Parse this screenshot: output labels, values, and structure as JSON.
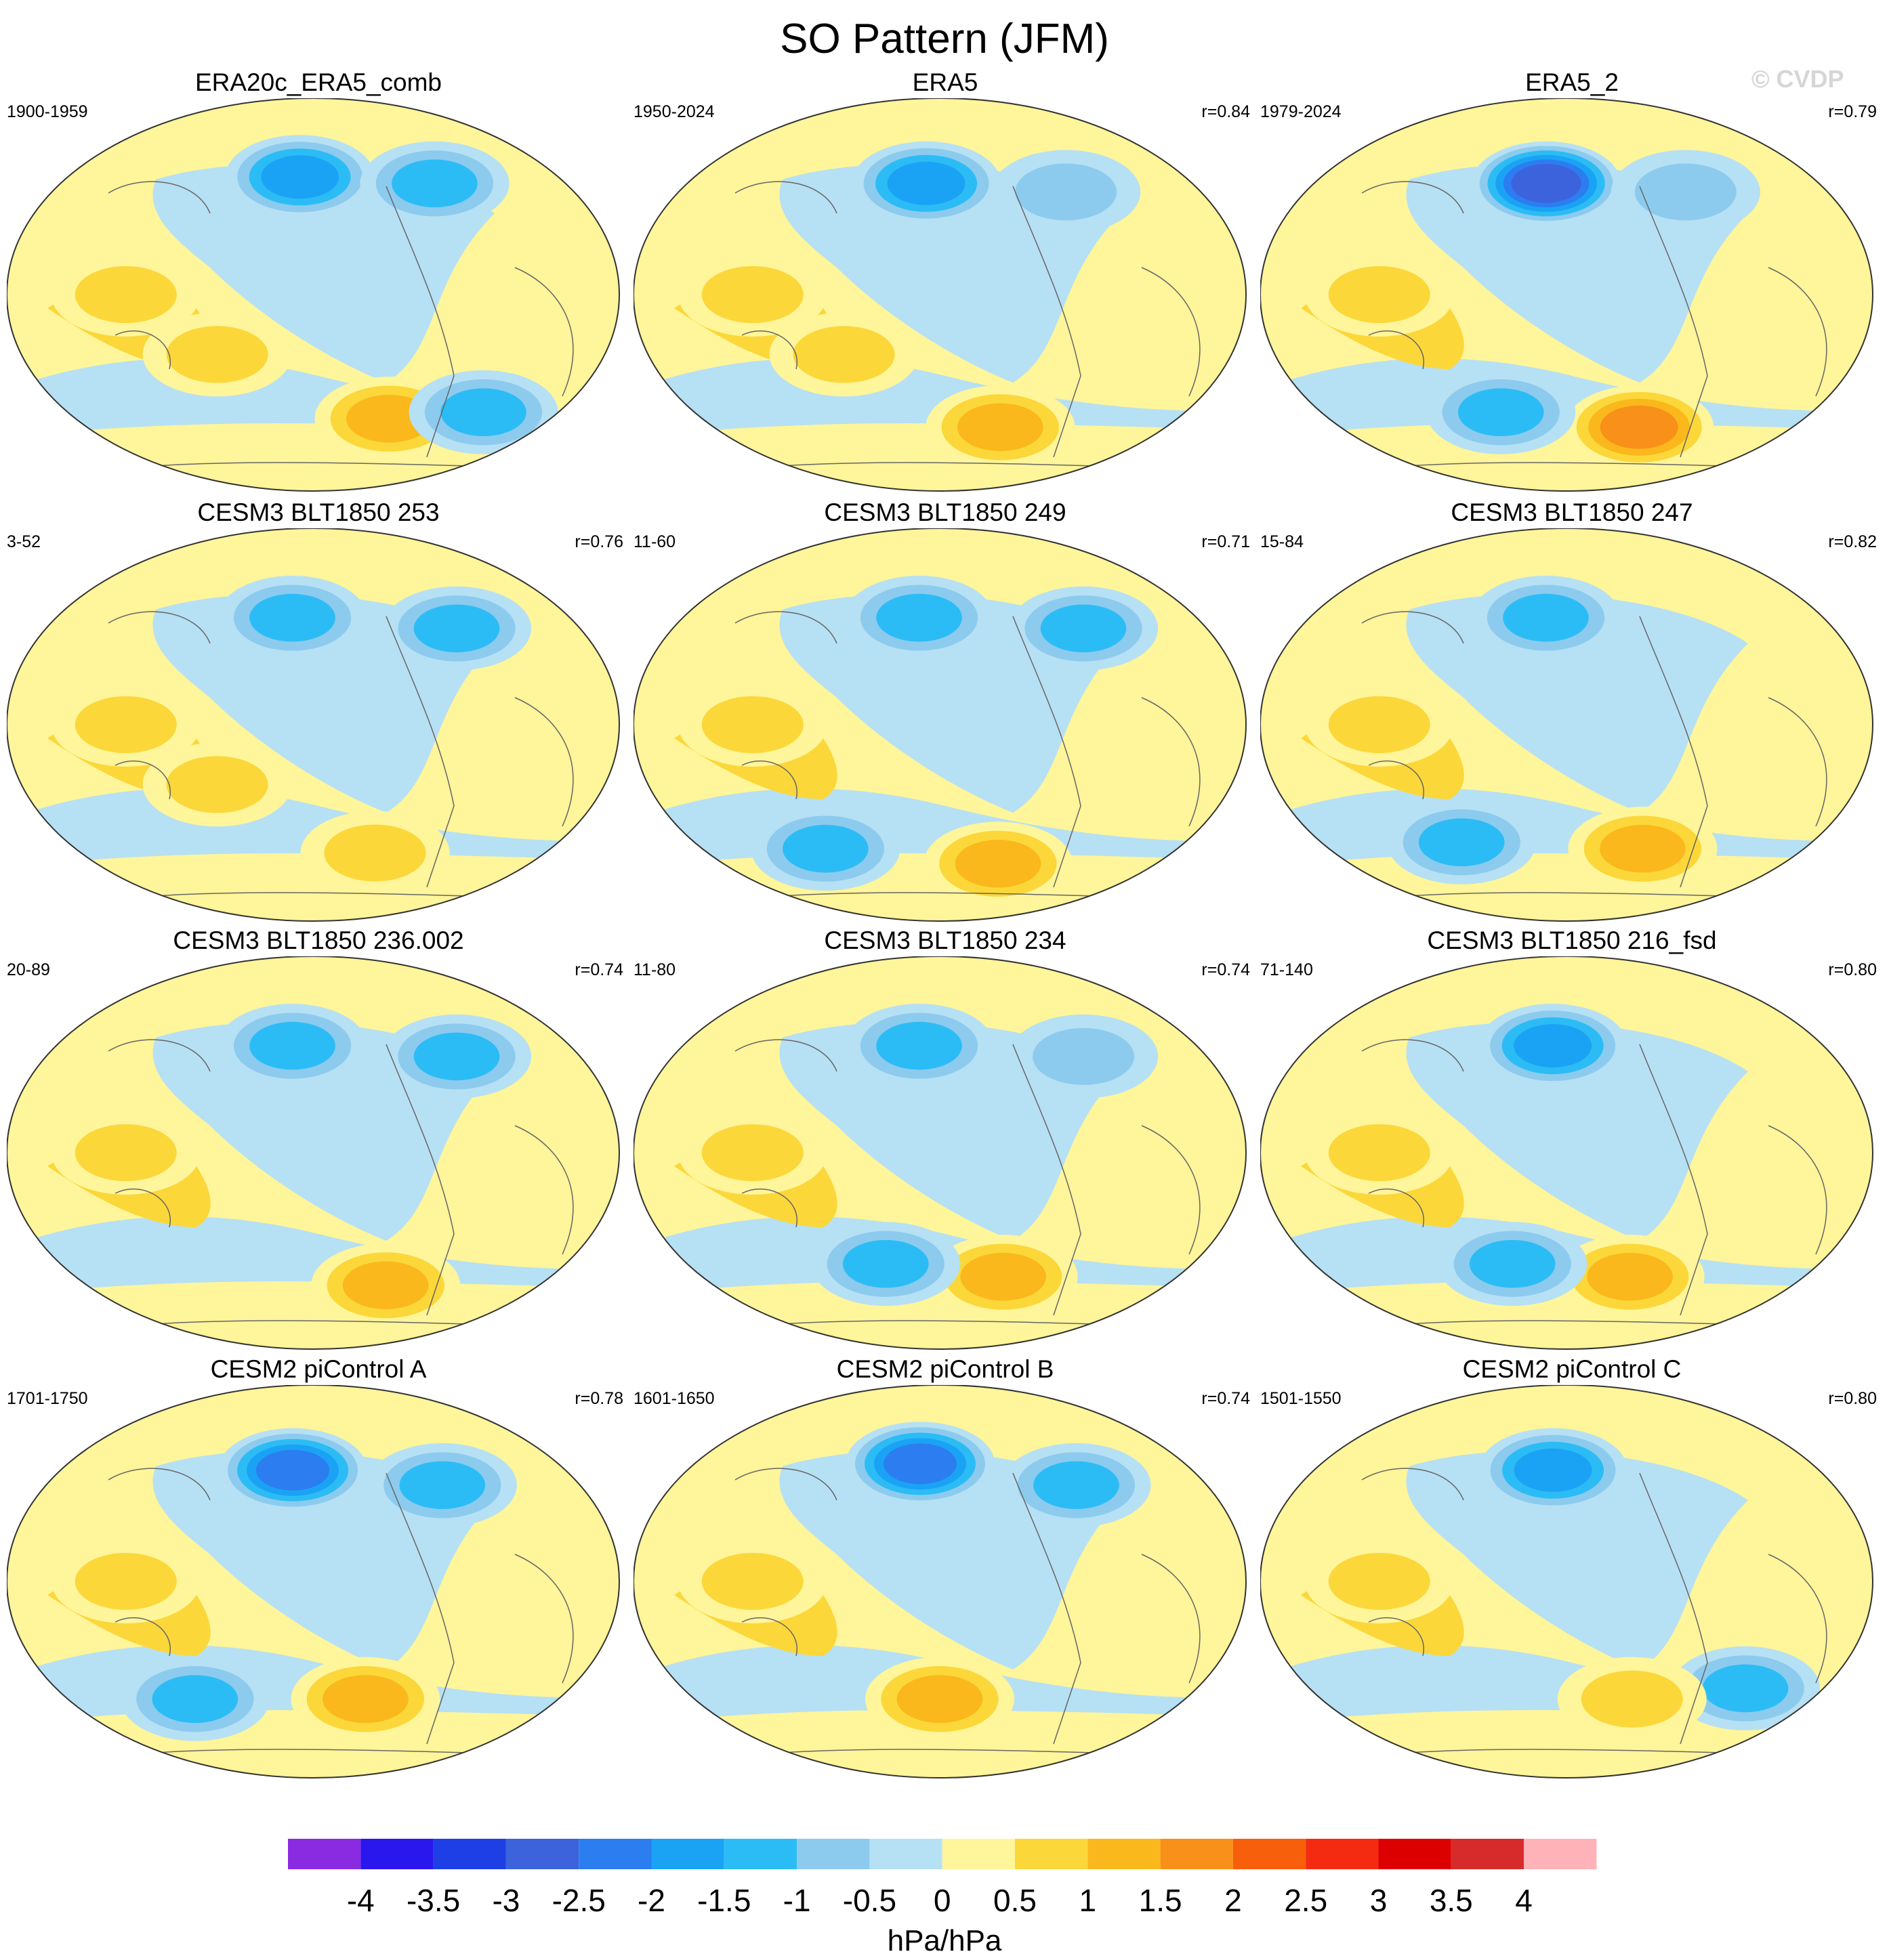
{
  "title": "SO Pattern (JFM)",
  "watermark": "© CVDP",
  "chart_data": {
    "type": "heatmap",
    "title": "SO Pattern (JFM)",
    "units": "hPa/hPa",
    "projection": "Robinson global maps (Pacific-centered), contour-filled",
    "colorbar": {
      "levels": [
        -4,
        -3.5,
        -3,
        -2.5,
        -2,
        -1.5,
        -1,
        -0.5,
        0,
        0.5,
        1,
        1.5,
        2,
        2.5,
        3,
        3.5,
        4
      ],
      "tick_labels": [
        "-4",
        "-3.5",
        "-3",
        "-2.5",
        "-2",
        "-1.5",
        "-1",
        "-0.5",
        "0",
        "0.5",
        "1",
        "1.5",
        "2",
        "2.5",
        "3",
        "3.5",
        "4"
      ],
      "colors": [
        "#8a2be2",
        "#2a17ee",
        "#1f3fe6",
        "#3c63dc",
        "#2b7df0",
        "#1aa3f5",
        "#2cbcf5",
        "#8ccbee",
        "#b6e0f4",
        "#fff59a",
        "#fbd73a",
        "#fab81c",
        "#f9901a",
        "#f85f0a",
        "#f42b10",
        "#dd0000",
        "#d72a2a",
        "#ffb3b8"
      ]
    },
    "panels": [
      {
        "title": "ERA20c_ERA5_comb",
        "years": "1900-1959",
        "r": "",
        "features": [
          {
            "lon": -160,
            "lat": 55,
            "value": -2
          },
          {
            "lon": -60,
            "lat": 52,
            "value": -1.5
          },
          {
            "lon": 100,
            "lat": 0,
            "value": 1
          },
          {
            "lon": -90,
            "lat": -58,
            "value": 1.5
          },
          {
            "lon": -20,
            "lat": -55,
            "value": -1.5
          },
          {
            "lon": 150,
            "lat": -28,
            "value": 1
          }
        ]
      },
      {
        "title": "ERA5",
        "years": "1950-2024",
        "r": "r=0.84",
        "features": [
          {
            "lon": -160,
            "lat": 52,
            "value": -2
          },
          {
            "lon": 100,
            "lat": 0,
            "value": 1
          },
          {
            "lon": -100,
            "lat": -62,
            "value": 1.5
          },
          {
            "lon": -60,
            "lat": 48,
            "value": -1
          },
          {
            "lon": 150,
            "lat": -28,
            "value": 1
          }
        ]
      },
      {
        "title": "ERA5_2",
        "years": "1979-2024",
        "r": "r=0.79",
        "features": [
          {
            "lon": -165,
            "lat": 52,
            "value": -3
          },
          {
            "lon": -65,
            "lat": 48,
            "value": -1
          },
          {
            "lon": 100,
            "lat": 0,
            "value": 1
          },
          {
            "lon": -90,
            "lat": -62,
            "value": 2
          },
          {
            "lon": 160,
            "lat": -55,
            "value": -1.5
          }
        ]
      },
      {
        "title": "CESM3 BLT1850 253",
        "years": "3-52",
        "r": "r=0.76",
        "features": [
          {
            "lon": -165,
            "lat": 50,
            "value": -1.5
          },
          {
            "lon": -50,
            "lat": 45,
            "value": -1.5
          },
          {
            "lon": 100,
            "lat": 0,
            "value": 1
          },
          {
            "lon": 150,
            "lat": -28,
            "value": 1
          },
          {
            "lon": -100,
            "lat": -60,
            "value": 1
          }
        ]
      },
      {
        "title": "CESM3 BLT1850 249",
        "years": "11-60",
        "r": "r=0.71",
        "features": [
          {
            "lon": -165,
            "lat": 50,
            "value": -1.5
          },
          {
            "lon": -50,
            "lat": 45,
            "value": -1.5
          },
          {
            "lon": 100,
            "lat": 0,
            "value": 1
          },
          {
            "lon": 120,
            "lat": -58,
            "value": -1.5
          },
          {
            "lon": -100,
            "lat": -65,
            "value": 1.5
          }
        ]
      },
      {
        "title": "CESM3 BLT1850 247",
        "years": "15-84",
        "r": "r=0.82",
        "features": [
          {
            "lon": -165,
            "lat": 50,
            "value": -1.5
          },
          {
            "lon": 100,
            "lat": 0,
            "value": 1
          },
          {
            "lon": -90,
            "lat": -58,
            "value": 1.5
          },
          {
            "lon": 130,
            "lat": -55,
            "value": -1.5
          }
        ]
      },
      {
        "title": "CESM3 BLT1850 236.002",
        "years": "20-89",
        "r": "r=0.74",
        "features": [
          {
            "lon": -165,
            "lat": 50,
            "value": -1.5
          },
          {
            "lon": -50,
            "lat": 45,
            "value": -1.5
          },
          {
            "lon": 100,
            "lat": 0,
            "value": 1
          },
          {
            "lon": -90,
            "lat": -62,
            "value": 1.5
          }
        ]
      },
      {
        "title": "CESM3 BLT1850 234",
        "years": "11-80",
        "r": "r=0.74",
        "features": [
          {
            "lon": -165,
            "lat": 50,
            "value": -1.5
          },
          {
            "lon": -50,
            "lat": 45,
            "value": -1
          },
          {
            "lon": 100,
            "lat": 0,
            "value": 1
          },
          {
            "lon": -100,
            "lat": -58,
            "value": 1.5
          },
          {
            "lon": 170,
            "lat": -52,
            "value": -1.5
          }
        ]
      },
      {
        "title": "CESM3 BLT1850 216_fsd",
        "years": "71-140",
        "r": "r=0.80",
        "features": [
          {
            "lon": -160,
            "lat": 50,
            "value": -2
          },
          {
            "lon": 100,
            "lat": 0,
            "value": 1
          },
          {
            "lon": -100,
            "lat": -58,
            "value": 1.5
          },
          {
            "lon": 170,
            "lat": -52,
            "value": -1.5
          }
        ]
      },
      {
        "title": "CESM2 piControl A",
        "years": "1701-1750",
        "r": "r=0.78",
        "features": [
          {
            "lon": -165,
            "lat": 52,
            "value": -2.5
          },
          {
            "lon": -60,
            "lat": 45,
            "value": -1.5
          },
          {
            "lon": 100,
            "lat": 0,
            "value": 1
          },
          {
            "lon": -110,
            "lat": -55,
            "value": 1.5
          },
          {
            "lon": 120,
            "lat": -55,
            "value": -1.5
          }
        ]
      },
      {
        "title": "CESM2 piControl B",
        "years": "1601-1650",
        "r": "r=0.74",
        "features": [
          {
            "lon": -165,
            "lat": 55,
            "value": -2.5
          },
          {
            "lon": -55,
            "lat": 45,
            "value": -1.5
          },
          {
            "lon": 100,
            "lat": 0,
            "value": 1
          },
          {
            "lon": -150,
            "lat": -55,
            "value": 1.5
          }
        ]
      },
      {
        "title": "CESM2 piControl C",
        "years": "1501-1550",
        "r": "r=0.80",
        "features": [
          {
            "lon": -160,
            "lat": 52,
            "value": -2
          },
          {
            "lon": 100,
            "lat": 0,
            "value": 1
          },
          {
            "lon": -20,
            "lat": -50,
            "value": -1.5
          },
          {
            "lon": -100,
            "lat": -55,
            "value": 1
          }
        ]
      }
    ]
  }
}
